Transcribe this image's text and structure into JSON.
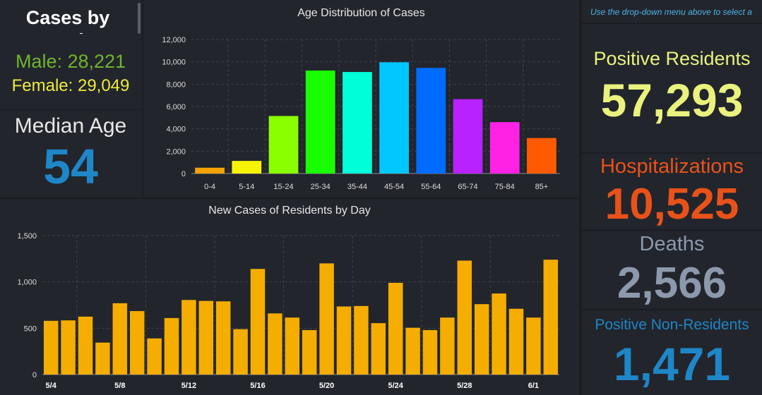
{
  "cases_by": {
    "title": "Cases by",
    "male": "Male: 28,221",
    "female": "Female: 29,049"
  },
  "median": {
    "label": "Median Age",
    "value": "54"
  },
  "hint": "Use the drop-down menu above to select a",
  "stats": {
    "positive_residents": {
      "label": "Positive Residents",
      "value": "57,293"
    },
    "hospitalizations": {
      "label": "Hospitalizations",
      "value": "10,525"
    },
    "deaths": {
      "label": "Deaths",
      "value": "2,566"
    },
    "non_residents": {
      "label": "Positive Non-Residents",
      "value": "1,471"
    }
  },
  "colors": {
    "background": "#1b1d23",
    "panel": "#22252c",
    "male": "#6fb52c",
    "female": "#f0ea3b",
    "median": "#1f86c7",
    "positive_residents": "#eaf27d",
    "hospitalizations": "#e8521a",
    "deaths": "#8c99ad",
    "non_residents": "#1f86c7",
    "daily_bar": "#f4ad00"
  },
  "chart_data": [
    {
      "type": "bar",
      "title": "Age Distribution of Cases",
      "categories": [
        "0-4",
        "5-14",
        "15-24",
        "25-34",
        "35-44",
        "45-54",
        "55-64",
        "65-74",
        "75-84",
        "85+"
      ],
      "values": [
        520,
        1130,
        5150,
        9220,
        9090,
        9960,
        9460,
        6660,
        4600,
        3180
      ],
      "bar_colors": [
        "#f5a300",
        "#f7f300",
        "#8aff00",
        "#19ff00",
        "#00ffd8",
        "#00c8ff",
        "#006cff",
        "#b722ff",
        "#ff22e5",
        "#ff5a00"
      ],
      "ylim": [
        0,
        12000
      ],
      "yticks": [
        "0",
        "2,000",
        "4,000",
        "6,000",
        "8,000",
        "10,000",
        "12,000"
      ],
      "ytick_values": [
        0,
        2000,
        4000,
        6000,
        8000,
        10000,
        12000
      ],
      "grid": true
    },
    {
      "type": "bar",
      "title": "New Cases of Residents by Day",
      "x": [
        "5/4",
        "5/5",
        "5/6",
        "5/7",
        "5/8",
        "5/9",
        "5/10",
        "5/11",
        "5/12",
        "5/13",
        "5/14",
        "5/15",
        "5/16",
        "5/17",
        "5/18",
        "5/19",
        "5/20",
        "5/21",
        "5/22",
        "5/23",
        "5/24",
        "5/25",
        "5/26",
        "5/27",
        "5/28",
        "5/29",
        "5/30",
        "5/31",
        "6/1",
        "6/2"
      ],
      "values": [
        580,
        585,
        625,
        345,
        770,
        685,
        390,
        610,
        805,
        795,
        790,
        490,
        1140,
        660,
        615,
        480,
        1200,
        735,
        740,
        555,
        990,
        505,
        480,
        615,
        1230,
        760,
        875,
        710,
        615,
        1240
      ],
      "xtick_labels": [
        "5/4",
        "5/8",
        "5/12",
        "5/16",
        "5/20",
        "5/24",
        "5/28",
        "6/1"
      ],
      "ylim": [
        0,
        1500
      ],
      "yticks": [
        "0",
        "500",
        "1,000",
        "1,500"
      ],
      "ytick_values": [
        0,
        500,
        1000,
        1500
      ],
      "grid": true
    }
  ]
}
